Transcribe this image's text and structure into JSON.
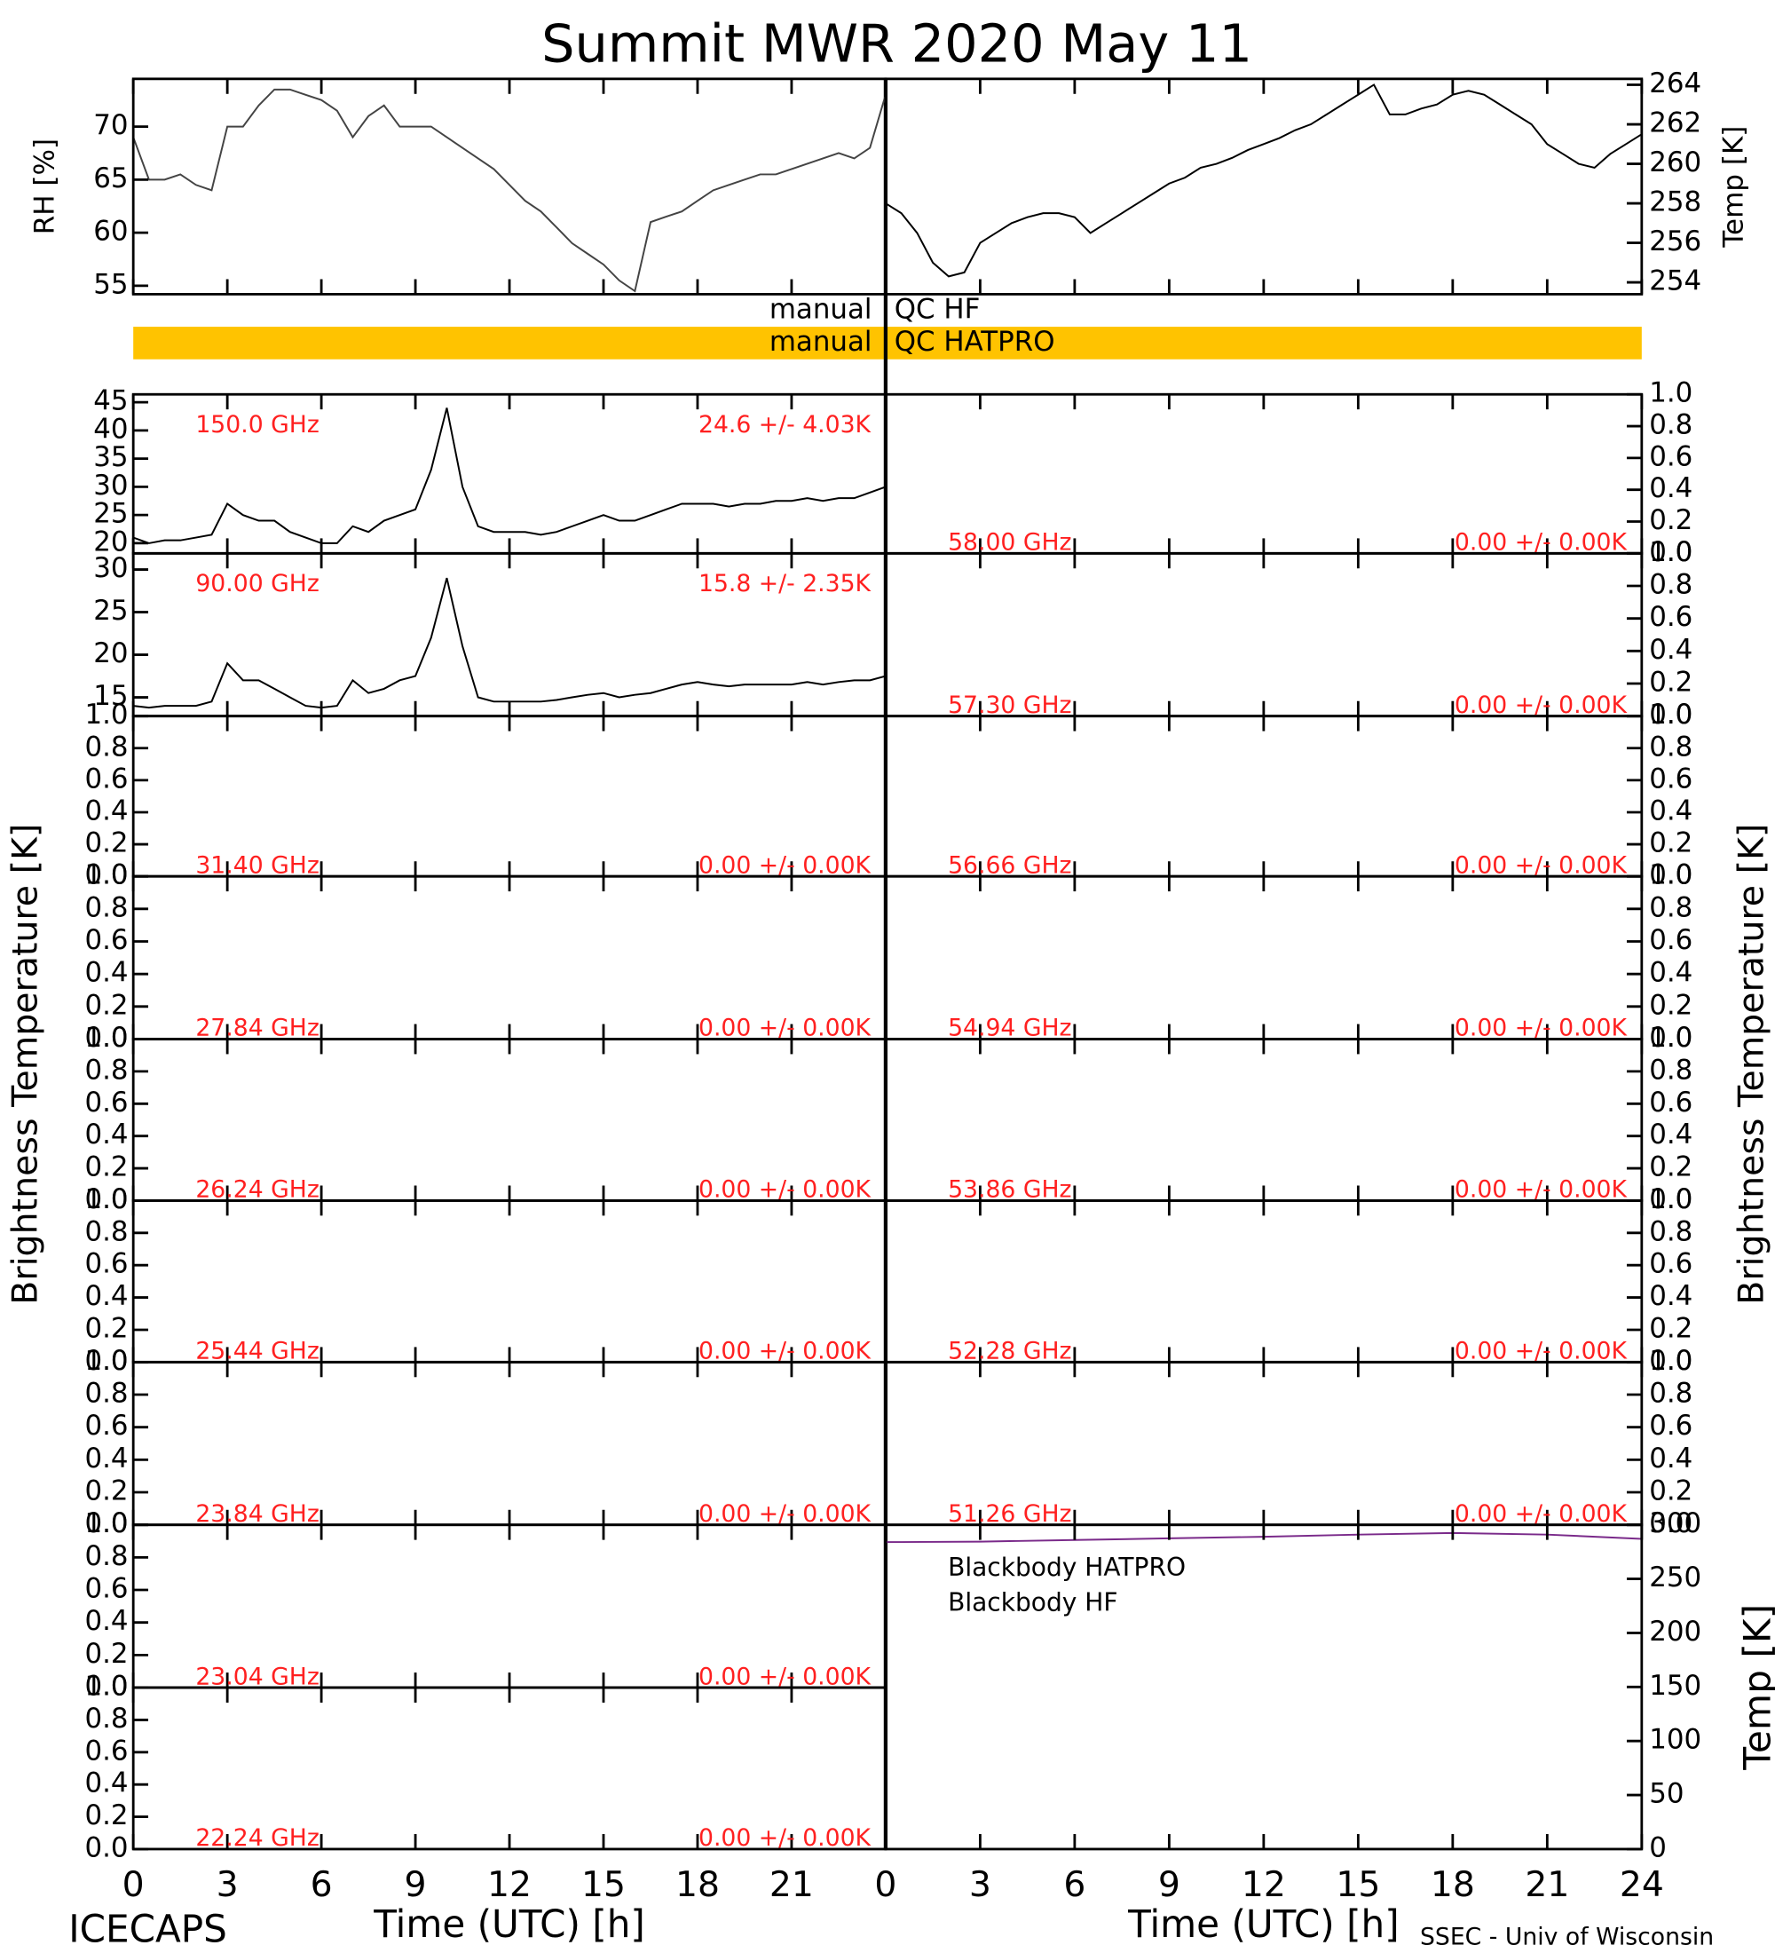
{
  "title": "Summit MWR 2020 May 11",
  "ylabel_left": "Brightness Temperature [K]",
  "ylabel_right": "Brightness Temperature [K]",
  "footer_left": "ICECAPS",
  "footer_right": "SSEC - Univ of Wisconsin",
  "qc": {
    "hf": {
      "left": "manual",
      "right": "QC HF"
    },
    "hatpro": {
      "left": "manual",
      "right": "QC HATPRO",
      "color": "#ffc300"
    }
  },
  "chart_data": [
    {
      "type": "line",
      "ylabel": "RH [%]",
      "xlim": [
        0,
        24
      ],
      "ylim": [
        54.2,
        74.5
      ],
      "yticks": [
        55,
        60,
        65,
        70
      ],
      "x": [
        0,
        0.5,
        1,
        1.5,
        2,
        2.5,
        3,
        3.5,
        4,
        4.5,
        5,
        5.5,
        6,
        6.5,
        7,
        7.5,
        8,
        8.5,
        9,
        9.5,
        10,
        10.5,
        11,
        11.5,
        12,
        12.5,
        13,
        13.5,
        14,
        14.5,
        15,
        15.5,
        16,
        16.5,
        17,
        17.5,
        18,
        18.5,
        19,
        19.5,
        20,
        20.5,
        21,
        21.5,
        22,
        22.5,
        23,
        23.5,
        24
      ],
      "series": [
        {
          "color": "#444444",
          "values": [
            69,
            65,
            65,
            65.5,
            64.5,
            64,
            70,
            70,
            72,
            73.5,
            73.5,
            73,
            72.5,
            71.5,
            69,
            71,
            72,
            70,
            70,
            70,
            69,
            68,
            67,
            66,
            64.5,
            63,
            62,
            60.5,
            59,
            58,
            57,
            55.5,
            54.5,
            61,
            61.5,
            62,
            63,
            64,
            64.5,
            65,
            65.5,
            65.5,
            66,
            66.5,
            67,
            67.5,
            67,
            68,
            73
          ]
        }
      ]
    },
    {
      "type": "line",
      "ylabel": "Temp [K]",
      "xlim": [
        0,
        24
      ],
      "ylim": [
        253.4,
        264.3
      ],
      "yticks": [
        254,
        256,
        258,
        260,
        262,
        264
      ],
      "x": [
        0,
        0.5,
        1,
        1.5,
        2,
        2.5,
        3,
        3.5,
        4,
        4.5,
        5,
        5.5,
        6,
        6.5,
        7,
        7.5,
        8,
        8.5,
        9,
        9.5,
        10,
        10.5,
        11,
        11.5,
        12,
        12.5,
        13,
        13.5,
        14,
        14.5,
        15,
        15.5,
        16,
        16.5,
        17,
        17.5,
        18,
        18.5,
        19,
        19.5,
        20,
        20.5,
        21,
        21.5,
        22,
        22.5,
        23,
        23.5,
        24
      ],
      "series": [
        {
          "color": "#000000",
          "values": [
            258,
            257.5,
            256.5,
            255,
            254.3,
            254.5,
            256,
            256.5,
            257,
            257.3,
            257.5,
            257.5,
            257.3,
            256.5,
            257,
            257.5,
            258,
            258.5,
            259,
            259.3,
            259.8,
            260,
            260.3,
            260.7,
            261,
            261.3,
            261.7,
            262,
            262.5,
            263,
            263.5,
            264,
            262.5,
            262.5,
            262.8,
            263,
            263.5,
            263.7,
            263.5,
            263,
            262.5,
            262,
            261,
            260.5,
            260,
            259.8,
            260.5,
            261,
            261.5
          ]
        }
      ]
    },
    {
      "type": "line",
      "label": "150.0 GHz",
      "stat": "24.6 +/-  4.03K",
      "xlim": [
        0,
        24
      ],
      "ylim": [
        18.2,
        46.4
      ],
      "yticks": [
        20,
        25,
        30,
        35,
        40,
        45
      ],
      "x": [
        0,
        0.5,
        1,
        1.5,
        2,
        2.5,
        3,
        3.5,
        4,
        4.5,
        5,
        5.5,
        6,
        6.5,
        7,
        7.5,
        8,
        8.5,
        9,
        9.5,
        10,
        10.5,
        11,
        11.5,
        12,
        12.5,
        13,
        13.5,
        14,
        14.5,
        15,
        15.5,
        16,
        16.5,
        17,
        17.5,
        18,
        18.5,
        19,
        19.5,
        20,
        20.5,
        21,
        21.5,
        22,
        22.5,
        23,
        23.5,
        24
      ],
      "series": [
        {
          "color": "#000000",
          "values": [
            21,
            20,
            20.5,
            20.5,
            21,
            21.5,
            27,
            25,
            24,
            24,
            22,
            21,
            20,
            20,
            23,
            22,
            24,
            25,
            26,
            33,
            44,
            30,
            23,
            22,
            22,
            22,
            21.5,
            22,
            23,
            24,
            25,
            24,
            24,
            25,
            26,
            27,
            27,
            27,
            26.5,
            27,
            27,
            27.5,
            27.5,
            28,
            27.5,
            28,
            28,
            29,
            30
          ]
        }
      ]
    },
    {
      "type": "line",
      "label": "90.00 GHz",
      "stat": "15.8 +/-  2.35K",
      "xlim": [
        0,
        24
      ],
      "ylim": [
        12.8,
        31.9
      ],
      "yticks": [
        15,
        20,
        25,
        30
      ],
      "x": [
        0,
        0.5,
        1,
        1.5,
        2,
        2.5,
        3,
        3.5,
        4,
        4.5,
        5,
        5.5,
        6,
        6.5,
        7,
        7.5,
        8,
        8.5,
        9,
        9.5,
        10,
        10.5,
        11,
        11.5,
        12,
        12.5,
        13,
        13.5,
        14,
        14.5,
        15,
        15.5,
        16,
        16.5,
        17,
        17.5,
        18,
        18.5,
        19,
        19.5,
        20,
        20.5,
        21,
        21.5,
        22,
        22.5,
        23,
        23.5,
        24
      ],
      "series": [
        {
          "color": "#000000",
          "values": [
            14,
            13.8,
            14,
            14,
            14,
            14.5,
            19,
            17,
            17,
            16,
            15,
            14,
            13.8,
            14,
            17,
            15.5,
            16,
            17,
            17.5,
            22,
            29,
            21,
            15,
            14.5,
            14.5,
            14.5,
            14.5,
            14.7,
            15,
            15.3,
            15.5,
            15,
            15.3,
            15.5,
            16,
            16.5,
            16.8,
            16.5,
            16.3,
            16.5,
            16.5,
            16.5,
            16.5,
            16.8,
            16.5,
            16.8,
            17,
            17,
            17.5
          ]
        }
      ]
    },
    {
      "type": "line",
      "label": "31.40 GHz",
      "stat": "0.00 +/-  0.00K",
      "xlim": [
        0,
        24
      ],
      "ylim": [
        0,
        1
      ],
      "yticks": [
        {
          "value": 0,
          "label": "0.0"
        },
        {
          "value": 0.2,
          "label": "0.2"
        },
        {
          "value": 0.4,
          "label": "0.4"
        },
        {
          "value": 0.6,
          "label": "0.6"
        },
        {
          "value": 0.8,
          "label": "0.8"
        },
        {
          "value": 1,
          "label": "1.0"
        }
      ]
    },
    {
      "type": "line",
      "label": "27.84 GHz",
      "stat": "0.00 +/-  0.00K",
      "xlim": [
        0,
        24
      ],
      "ylim": [
        0,
        1
      ],
      "yticks": [
        {
          "value": 0,
          "label": "0.0"
        },
        {
          "value": 0.2,
          "label": "0.2"
        },
        {
          "value": 0.4,
          "label": "0.4"
        },
        {
          "value": 0.6,
          "label": "0.6"
        },
        {
          "value": 0.8,
          "label": "0.8"
        },
        {
          "value": 1,
          "label": "1.0"
        }
      ]
    },
    {
      "type": "line",
      "label": "26.24 GHz",
      "stat": "0.00 +/-  0.00K",
      "xlim": [
        0,
        24
      ],
      "ylim": [
        0,
        1
      ],
      "yticks": [
        {
          "value": 0,
          "label": "0.0"
        },
        {
          "value": 0.2,
          "label": "0.2"
        },
        {
          "value": 0.4,
          "label": "0.4"
        },
        {
          "value": 0.6,
          "label": "0.6"
        },
        {
          "value": 0.8,
          "label": "0.8"
        },
        {
          "value": 1,
          "label": "1.0"
        }
      ]
    },
    {
      "type": "line",
      "label": "25.44 GHz",
      "stat": "0.00 +/-  0.00K",
      "xlim": [
        0,
        24
      ],
      "ylim": [
        0,
        1
      ],
      "yticks": [
        {
          "value": 0,
          "label": "0.0"
        },
        {
          "value": 0.2,
          "label": "0.2"
        },
        {
          "value": 0.4,
          "label": "0.4"
        },
        {
          "value": 0.6,
          "label": "0.6"
        },
        {
          "value": 0.8,
          "label": "0.8"
        },
        {
          "value": 1,
          "label": "1.0"
        }
      ]
    },
    {
      "type": "line",
      "label": "23.84 GHz",
      "stat": "0.00 +/-  0.00K",
      "xlim": [
        0,
        24
      ],
      "ylim": [
        0,
        1
      ],
      "yticks": [
        {
          "value": 0,
          "label": "0.0"
        },
        {
          "value": 0.2,
          "label": "0.2"
        },
        {
          "value": 0.4,
          "label": "0.4"
        },
        {
          "value": 0.6,
          "label": "0.6"
        },
        {
          "value": 0.8,
          "label": "0.8"
        },
        {
          "value": 1,
          "label": "1.0"
        }
      ]
    },
    {
      "type": "line",
      "label": "23.04 GHz",
      "stat": "0.00 +/-  0.00K",
      "xlim": [
        0,
        24
      ],
      "ylim": [
        0,
        1
      ],
      "yticks": [
        {
          "value": 0,
          "label": "0.0"
        },
        {
          "value": 0.2,
          "label": "0.2"
        },
        {
          "value": 0.4,
          "label": "0.4"
        },
        {
          "value": 0.6,
          "label": "0.6"
        },
        {
          "value": 0.8,
          "label": "0.8"
        },
        {
          "value": 1,
          "label": "1.0"
        }
      ]
    },
    {
      "type": "line",
      "label": "22.24 GHz",
      "stat": "0.00 +/-  0.00K",
      "xlim": [
        0,
        24
      ],
      "ylim": [
        0,
        1
      ],
      "yticks": [
        {
          "value": 0,
          "label": "0.0"
        },
        {
          "value": 0.2,
          "label": "0.2"
        },
        {
          "value": 0.4,
          "label": "0.4"
        },
        {
          "value": 0.6,
          "label": "0.6"
        },
        {
          "value": 0.8,
          "label": "0.8"
        },
        {
          "value": 1,
          "label": "1.0"
        }
      ],
      "xticks": [
        0,
        3,
        6,
        9,
        12,
        15,
        18,
        21
      ],
      "xlabel": "Time (UTC) [h]"
    },
    {
      "type": "line",
      "label": "58.00 GHz",
      "stat": "0.00 +/-  0.00K",
      "xlim": [
        0,
        24
      ],
      "ylim": [
        0,
        1
      ],
      "yticks": [
        {
          "value": 0,
          "label": "0.0"
        },
        {
          "value": 0.2,
          "label": "0.2"
        },
        {
          "value": 0.4,
          "label": "0.4"
        },
        {
          "value": 0.6,
          "label": "0.6"
        },
        {
          "value": 0.8,
          "label": "0.8"
        },
        {
          "value": 1,
          "label": "1.0"
        }
      ]
    },
    {
      "type": "line",
      "label": "57.30 GHz",
      "stat": "0.00 +/-  0.00K",
      "xlim": [
        0,
        24
      ],
      "ylim": [
        0,
        1
      ],
      "yticks": [
        {
          "value": 0,
          "label": "0.0"
        },
        {
          "value": 0.2,
          "label": "0.2"
        },
        {
          "value": 0.4,
          "label": "0.4"
        },
        {
          "value": 0.6,
          "label": "0.6"
        },
        {
          "value": 0.8,
          "label": "0.8"
        },
        {
          "value": 1,
          "label": "1.0"
        }
      ]
    },
    {
      "type": "line",
      "label": "56.66 GHz",
      "stat": "0.00 +/-  0.00K",
      "xlim": [
        0,
        24
      ],
      "ylim": [
        0,
        1
      ],
      "yticks": [
        {
          "value": 0,
          "label": "0.0"
        },
        {
          "value": 0.2,
          "label": "0.2"
        },
        {
          "value": 0.4,
          "label": "0.4"
        },
        {
          "value": 0.6,
          "label": "0.6"
        },
        {
          "value": 0.8,
          "label": "0.8"
        },
        {
          "value": 1,
          "label": "1.0"
        }
      ]
    },
    {
      "type": "line",
      "label": "54.94 GHz",
      "stat": "0.00 +/-  0.00K",
      "xlim": [
        0,
        24
      ],
      "ylim": [
        0,
        1
      ],
      "yticks": [
        {
          "value": 0,
          "label": "0.0"
        },
        {
          "value": 0.2,
          "label": "0.2"
        },
        {
          "value": 0.4,
          "label": "0.4"
        },
        {
          "value": 0.6,
          "label": "0.6"
        },
        {
          "value": 0.8,
          "label": "0.8"
        },
        {
          "value": 1,
          "label": "1.0"
        }
      ]
    },
    {
      "type": "line",
      "label": "53.86 GHz",
      "stat": "0.00 +/-  0.00K",
      "xlim": [
        0,
        24
      ],
      "ylim": [
        0,
        1
      ],
      "yticks": [
        {
          "value": 0,
          "label": "0.0"
        },
        {
          "value": 0.2,
          "label": "0.2"
        },
        {
          "value": 0.4,
          "label": "0.4"
        },
        {
          "value": 0.6,
          "label": "0.6"
        },
        {
          "value": 0.8,
          "label": "0.8"
        },
        {
          "value": 1,
          "label": "1.0"
        }
      ]
    },
    {
      "type": "line",
      "label": "52.28 GHz",
      "stat": "0.00 +/-  0.00K",
      "xlim": [
        0,
        24
      ],
      "ylim": [
        0,
        1
      ],
      "yticks": [
        {
          "value": 0,
          "label": "0.0"
        },
        {
          "value": 0.2,
          "label": "0.2"
        },
        {
          "value": 0.4,
          "label": "0.4"
        },
        {
          "value": 0.6,
          "label": "0.6"
        },
        {
          "value": 0.8,
          "label": "0.8"
        },
        {
          "value": 1,
          "label": "1.0"
        }
      ]
    },
    {
      "type": "line",
      "label": "51.26 GHz",
      "stat": "0.00 +/-  0.00K",
      "xlim": [
        0,
        24
      ],
      "ylim": [
        0,
        1
      ],
      "yticks": [
        {
          "value": 0,
          "label": "0.0"
        },
        {
          "value": 0.2,
          "label": "0.2"
        },
        {
          "value": 0.4,
          "label": "0.4"
        },
        {
          "value": 0.6,
          "label": "0.6"
        },
        {
          "value": 0.8,
          "label": "0.8"
        },
        {
          "value": 1,
          "label": "1.0"
        }
      ]
    },
    {
      "type": "line",
      "ylabel": "Temp [K]",
      "xlim": [
        0,
        24
      ],
      "ylim": [
        0,
        300
      ],
      "yticks": [
        0,
        50,
        100,
        150,
        200,
        250,
        300
      ],
      "xticks": [
        0,
        3,
        6,
        9,
        12,
        15,
        18,
        21,
        24
      ],
      "xlabel": "Time (UTC) [h]",
      "x": [
        0,
        3,
        6,
        9,
        12,
        15,
        18,
        21,
        24
      ],
      "series": [
        {
          "name": "Blackbody HATPRO",
          "color": "#2a7fd4",
          "values": [
            0,
            0,
            0,
            0,
            0,
            0,
            0,
            0,
            0
          ]
        },
        {
          "name": "Blackbody HF",
          "color": "#7a2a8a",
          "values": [
            284,
            284.5,
            286,
            287.5,
            289,
            291,
            292.5,
            291,
            287
          ]
        }
      ]
    }
  ]
}
